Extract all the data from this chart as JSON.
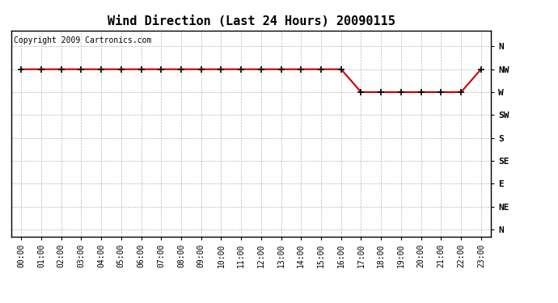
{
  "title": "Wind Direction (Last 24 Hours) 20090115",
  "copyright_text": "Copyright 2009 Cartronics.com",
  "background_color": "#ffffff",
  "line_color": "#cc0000",
  "grid_color": "#b0b0b0",
  "x_labels": [
    "00:00",
    "01:00",
    "02:00",
    "03:00",
    "04:00",
    "05:00",
    "06:00",
    "07:00",
    "08:00",
    "09:00",
    "10:00",
    "11:00",
    "12:00",
    "13:00",
    "14:00",
    "15:00",
    "16:00",
    "17:00",
    "18:00",
    "19:00",
    "20:00",
    "21:00",
    "22:00",
    "23:00"
  ],
  "y_labels_top_to_bottom": [
    "N",
    "NW",
    "W",
    "SW",
    "S",
    "SE",
    "E",
    "NE",
    "N"
  ],
  "y_positions": [
    8,
    7,
    6,
    5,
    4,
    3,
    2,
    1,
    0
  ],
  "data_x": [
    0,
    1,
    2,
    3,
    4,
    5,
    6,
    7,
    8,
    9,
    10,
    11,
    12,
    13,
    14,
    15,
    16,
    17,
    18,
    19,
    20,
    21,
    22,
    23
  ],
  "data_y": [
    7,
    7,
    7,
    7,
    7,
    7,
    7,
    7,
    7,
    7,
    7,
    7,
    7,
    7,
    7,
    7,
    7,
    6,
    6,
    6,
    6,
    6,
    6,
    7
  ],
  "ylim": [
    -0.3,
    8.7
  ],
  "xlim": [
    -0.5,
    23.5
  ],
  "title_fontsize": 11,
  "copyright_fontsize": 7,
  "tick_fontsize": 7,
  "ytick_fontsize": 8
}
